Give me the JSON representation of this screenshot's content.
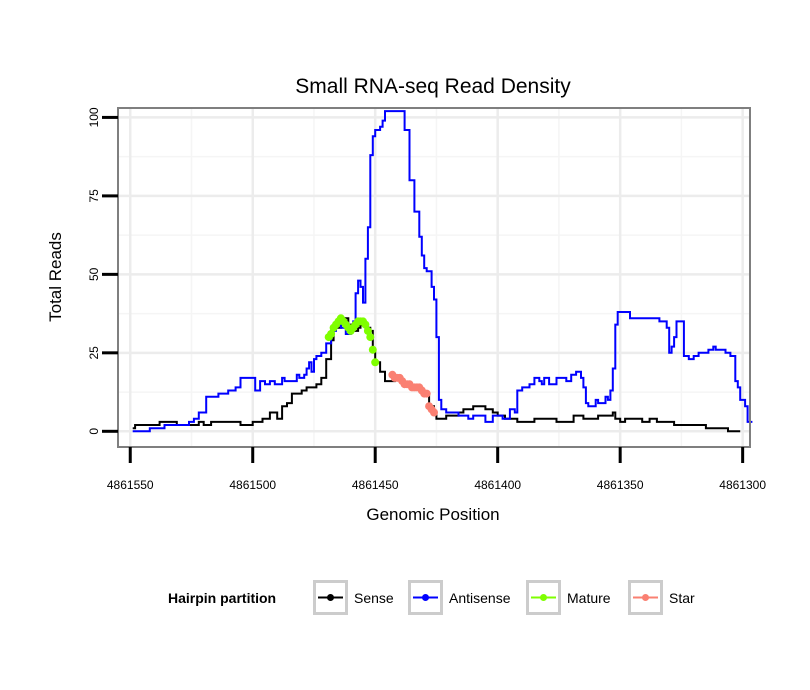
{
  "chart_data": {
    "type": "line",
    "title": "Small RNA-seq Read Density",
    "xlabel": "Genomic Position",
    "ylabel": "Total Reads",
    "xlim": [
      4861555,
      4861297
    ],
    "ylim": [
      -5,
      103
    ],
    "x_ticks": [
      4861550,
      4861500,
      4861450,
      4861400,
      4861350,
      4861300
    ],
    "x_tick_labels": [
      "4861550",
      "4861500",
      "4861450",
      "4861400",
      "4861350",
      "4861300"
    ],
    "y_ticks": [
      0,
      25,
      50,
      75,
      100
    ],
    "y_tick_labels": [
      "0",
      "25",
      "50",
      "75",
      "100"
    ],
    "x_minor_ticks": [
      4861525,
      4861475,
      4861425,
      4861375,
      4861325
    ],
    "y_minor_ticks": [
      12.5,
      37.5,
      62.5,
      87.5
    ],
    "grid": true,
    "legend": {
      "title": "Hairpin partition",
      "position": "bottom",
      "entries": [
        {
          "name": "Sense",
          "color": "#000000",
          "marker": "line-point"
        },
        {
          "name": "Antisense",
          "color": "#0000ff",
          "marker": "line-point"
        },
        {
          "name": "Mature",
          "color": "#7fff00",
          "marker": "line-point"
        },
        {
          "name": "Star",
          "color": "#fa8072",
          "marker": "line-point"
        }
      ]
    },
    "series": [
      {
        "name": "Sense",
        "color": "#000000",
        "points": [
          [
            4861549,
            1
          ],
          [
            4861548,
            2
          ],
          [
            4861540,
            2
          ],
          [
            4861538,
            3
          ],
          [
            4861533,
            3
          ],
          [
            4861531,
            2
          ],
          [
            4861524,
            2
          ],
          [
            4861522,
            3
          ],
          [
            4861520,
            2
          ],
          [
            4861519,
            2
          ],
          [
            4861517,
            3
          ],
          [
            4861506,
            3
          ],
          [
            4861505,
            2
          ],
          [
            4861502,
            2
          ],
          [
            4861500,
            3
          ],
          [
            4861497,
            3
          ],
          [
            4861496,
            4
          ],
          [
            4861494,
            4
          ],
          [
            4861493,
            6
          ],
          [
            4861491,
            6
          ],
          [
            4861490,
            4
          ],
          [
            4861489,
            4
          ],
          [
            4861488,
            8
          ],
          [
            4861486,
            9
          ],
          [
            4861484,
            12
          ],
          [
            4861482,
            12
          ],
          [
            4861480,
            13
          ],
          [
            4861478,
            14
          ],
          [
            4861476,
            14
          ],
          [
            4861474,
            15
          ],
          [
            4861472,
            17
          ],
          [
            4861470,
            23
          ],
          [
            4861468,
            29
          ],
          [
            4861467,
            33
          ],
          [
            4861466,
            34
          ],
          [
            4861465,
            33
          ],
          [
            4861464,
            35
          ],
          [
            4861463,
            36
          ],
          [
            4861461,
            34
          ],
          [
            4861459,
            33
          ],
          [
            4861458,
            32
          ],
          [
            4861457,
            33
          ],
          [
            4861456,
            34
          ],
          [
            4861455,
            35
          ],
          [
            4861454,
            33
          ],
          [
            4861452,
            32
          ],
          [
            4861451,
            26
          ],
          [
            4861450,
            22
          ],
          [
            4861448,
            19
          ],
          [
            4861446,
            16
          ],
          [
            4861444,
            16
          ],
          [
            4861442,
            17
          ],
          [
            4861440,
            16
          ],
          [
            4861438,
            15
          ],
          [
            4861436,
            14
          ],
          [
            4861434,
            14
          ],
          [
            4861432,
            13
          ],
          [
            4861430,
            12
          ],
          [
            4861428,
            8
          ],
          [
            4861426,
            6
          ],
          [
            4861425,
            4
          ],
          [
            4861423,
            4
          ],
          [
            4861421,
            5
          ],
          [
            4861418,
            5
          ],
          [
            4861416,
            6
          ],
          [
            4861414,
            7
          ],
          [
            4861412,
            7
          ],
          [
            4861410,
            8
          ],
          [
            4861407,
            8
          ],
          [
            4861405,
            7
          ],
          [
            4861403,
            7
          ],
          [
            4861402,
            6
          ],
          [
            4861400,
            5
          ],
          [
            4861397,
            4
          ],
          [
            4861394,
            4
          ],
          [
            4861392,
            3
          ],
          [
            4861388,
            3
          ],
          [
            4861385,
            4
          ],
          [
            4861380,
            4
          ],
          [
            4861376,
            3
          ],
          [
            4861370,
            3
          ],
          [
            4861369,
            5
          ],
          [
            4861366,
            5
          ],
          [
            4861365,
            4
          ],
          [
            4861360,
            4
          ],
          [
            4861359,
            5
          ],
          [
            4861355,
            5
          ],
          [
            4861353,
            6
          ],
          [
            4861352,
            4
          ],
          [
            4861350,
            3
          ],
          [
            4861348,
            4
          ],
          [
            4861343,
            4
          ],
          [
            4861341,
            3
          ],
          [
            4861338,
            4
          ],
          [
            4861335,
            3
          ],
          [
            4861330,
            3
          ],
          [
            4861328,
            2
          ],
          [
            4861318,
            2
          ],
          [
            4861315,
            1
          ],
          [
            4861307,
            1
          ],
          [
            4861306,
            0
          ],
          [
            4861301,
            0
          ]
        ]
      },
      {
        "name": "Antisense",
        "color": "#0000ff",
        "points": [
          [
            4861549,
            0
          ],
          [
            4861543,
            0
          ],
          [
            4861542,
            1
          ],
          [
            4861537,
            1
          ],
          [
            4861536,
            2
          ],
          [
            4861528,
            2
          ],
          [
            4861526,
            3
          ],
          [
            4861524,
            4
          ],
          [
            4861522,
            6
          ],
          [
            4861519,
            11
          ],
          [
            4861517,
            11
          ],
          [
            4861514,
            12
          ],
          [
            4861512,
            12
          ],
          [
            4861510,
            13
          ],
          [
            4861507,
            14
          ],
          [
            4861505,
            17
          ],
          [
            4861500,
            17
          ],
          [
            4861499,
            13
          ],
          [
            4861498,
            13
          ],
          [
            4861497,
            16
          ],
          [
            4861495,
            15
          ],
          [
            4861493,
            16
          ],
          [
            4861491,
            15
          ],
          [
            4861489,
            15
          ],
          [
            4861488,
            17
          ],
          [
            4861487,
            16
          ],
          [
            4861485,
            16
          ],
          [
            4861483,
            16
          ],
          [
            4861482,
            18
          ],
          [
            4861481,
            17
          ],
          [
            4861479,
            18
          ],
          [
            4861478,
            20
          ],
          [
            4861477,
            22
          ],
          [
            4861476,
            19
          ],
          [
            4861475,
            23
          ],
          [
            4861474,
            24
          ],
          [
            4861472,
            25
          ],
          [
            4861470,
            28
          ],
          [
            4861468,
            32
          ],
          [
            4861466,
            34
          ],
          [
            4861464,
            33
          ],
          [
            4861462,
            31
          ],
          [
            4861460,
            32
          ],
          [
            4861459,
            35
          ],
          [
            4861458,
            44
          ],
          [
            4861457,
            48
          ],
          [
            4861456,
            46
          ],
          [
            4861455,
            41
          ],
          [
            4861454,
            55
          ],
          [
            4861453,
            65
          ],
          [
            4861452,
            88
          ],
          [
            4861451,
            94
          ],
          [
            4861450,
            96
          ],
          [
            4861448,
            97
          ],
          [
            4861447,
            99
          ],
          [
            4861446,
            102
          ],
          [
            4861439,
            102
          ],
          [
            4861438,
            96
          ],
          [
            4861436,
            80
          ],
          [
            4861434,
            70
          ],
          [
            4861432,
            62
          ],
          [
            4861431,
            56
          ],
          [
            4861430,
            52
          ],
          [
            4861429,
            51
          ],
          [
            4861427,
            46
          ],
          [
            4861426,
            42
          ],
          [
            4861425,
            30
          ],
          [
            4861424,
            10
          ],
          [
            4861423,
            7
          ],
          [
            4861421,
            6
          ],
          [
            4861418,
            6
          ],
          [
            4861416,
            5
          ],
          [
            4861414,
            5
          ],
          [
            4861412,
            4
          ],
          [
            4861410,
            5
          ],
          [
            4861406,
            5
          ],
          [
            4861405,
            3
          ],
          [
            4861403,
            3
          ],
          [
            4861402,
            5
          ],
          [
            4861400,
            5
          ],
          [
            4861398,
            4
          ],
          [
            4861396,
            4
          ],
          [
            4861395,
            7
          ],
          [
            4861394,
            7
          ],
          [
            4861393,
            6
          ],
          [
            4861392,
            13
          ],
          [
            4861390,
            14
          ],
          [
            4861387,
            15
          ],
          [
            4861385,
            17
          ],
          [
            4861383,
            16
          ],
          [
            4861382,
            15
          ],
          [
            4861381,
            17
          ],
          [
            4861379,
            15
          ],
          [
            4861376,
            17
          ],
          [
            4861374,
            17
          ],
          [
            4861372,
            16
          ],
          [
            4861370,
            18
          ],
          [
            4861368,
            19
          ],
          [
            4861366,
            17
          ],
          [
            4861365,
            14
          ],
          [
            4861364,
            9
          ],
          [
            4861363,
            8
          ],
          [
            4861361,
            8
          ],
          [
            4861360,
            10
          ],
          [
            4861359,
            9
          ],
          [
            4861357,
            9
          ],
          [
            4861356,
            11
          ],
          [
            4861355,
            10
          ],
          [
            4861354,
            13
          ],
          [
            4861353,
            20
          ],
          [
            4861352,
            34
          ],
          [
            4861351,
            38
          ],
          [
            4861347,
            38
          ],
          [
            4861346,
            36
          ],
          [
            4861335,
            36
          ],
          [
            4861334,
            35
          ],
          [
            4861332,
            35
          ],
          [
            4861331,
            33
          ],
          [
            4861330,
            25
          ],
          [
            4861329,
            27
          ],
          [
            4861328,
            30
          ],
          [
            4861327,
            35
          ],
          [
            4861325,
            35
          ],
          [
            4861324,
            24
          ],
          [
            4861322,
            23
          ],
          [
            4861320,
            24
          ],
          [
            4861318,
            25
          ],
          [
            4861316,
            25
          ],
          [
            4861314,
            26
          ],
          [
            4861312,
            27
          ],
          [
            4861311,
            26
          ],
          [
            4861309,
            26
          ],
          [
            4861307,
            25
          ],
          [
            4861305,
            24
          ],
          [
            4861303,
            16
          ],
          [
            4861302,
            14
          ],
          [
            4861301,
            10
          ],
          [
            4861299,
            8
          ],
          [
            4861298,
            3
          ],
          [
            4861296,
            3
          ]
        ]
      },
      {
        "name": "Mature",
        "color": "#7fff00",
        "points": [
          [
            4861469,
            30
          ],
          [
            4861468,
            31
          ],
          [
            4861467,
            33
          ],
          [
            4861466,
            34
          ],
          [
            4861465,
            35
          ],
          [
            4861464,
            36
          ],
          [
            4861463,
            35
          ],
          [
            4861462,
            34
          ],
          [
            4861461,
            33
          ],
          [
            4861460,
            32
          ],
          [
            4861459,
            33
          ],
          [
            4861458,
            34
          ],
          [
            4861457,
            35
          ],
          [
            4861456,
            35
          ],
          [
            4861455,
            35
          ],
          [
            4861454,
            34
          ],
          [
            4861453,
            32
          ],
          [
            4861452,
            30
          ],
          [
            4861451,
            26
          ],
          [
            4861450,
            22
          ]
        ]
      },
      {
        "name": "Star",
        "color": "#fa8072",
        "points": [
          [
            4861443,
            18
          ],
          [
            4861442,
            17
          ],
          [
            4861441,
            17
          ],
          [
            4861440,
            17
          ],
          [
            4861439,
            16
          ],
          [
            4861438,
            15
          ],
          [
            4861437,
            15
          ],
          [
            4861436,
            15
          ],
          [
            4861435,
            14
          ],
          [
            4861434,
            14
          ],
          [
            4861433,
            14
          ],
          [
            4861432,
            14
          ],
          [
            4861431,
            13
          ],
          [
            4861430,
            12
          ],
          [
            4861429,
            12
          ],
          [
            4861428,
            8
          ],
          [
            4861427,
            7
          ],
          [
            4861426,
            6
          ]
        ]
      }
    ]
  }
}
